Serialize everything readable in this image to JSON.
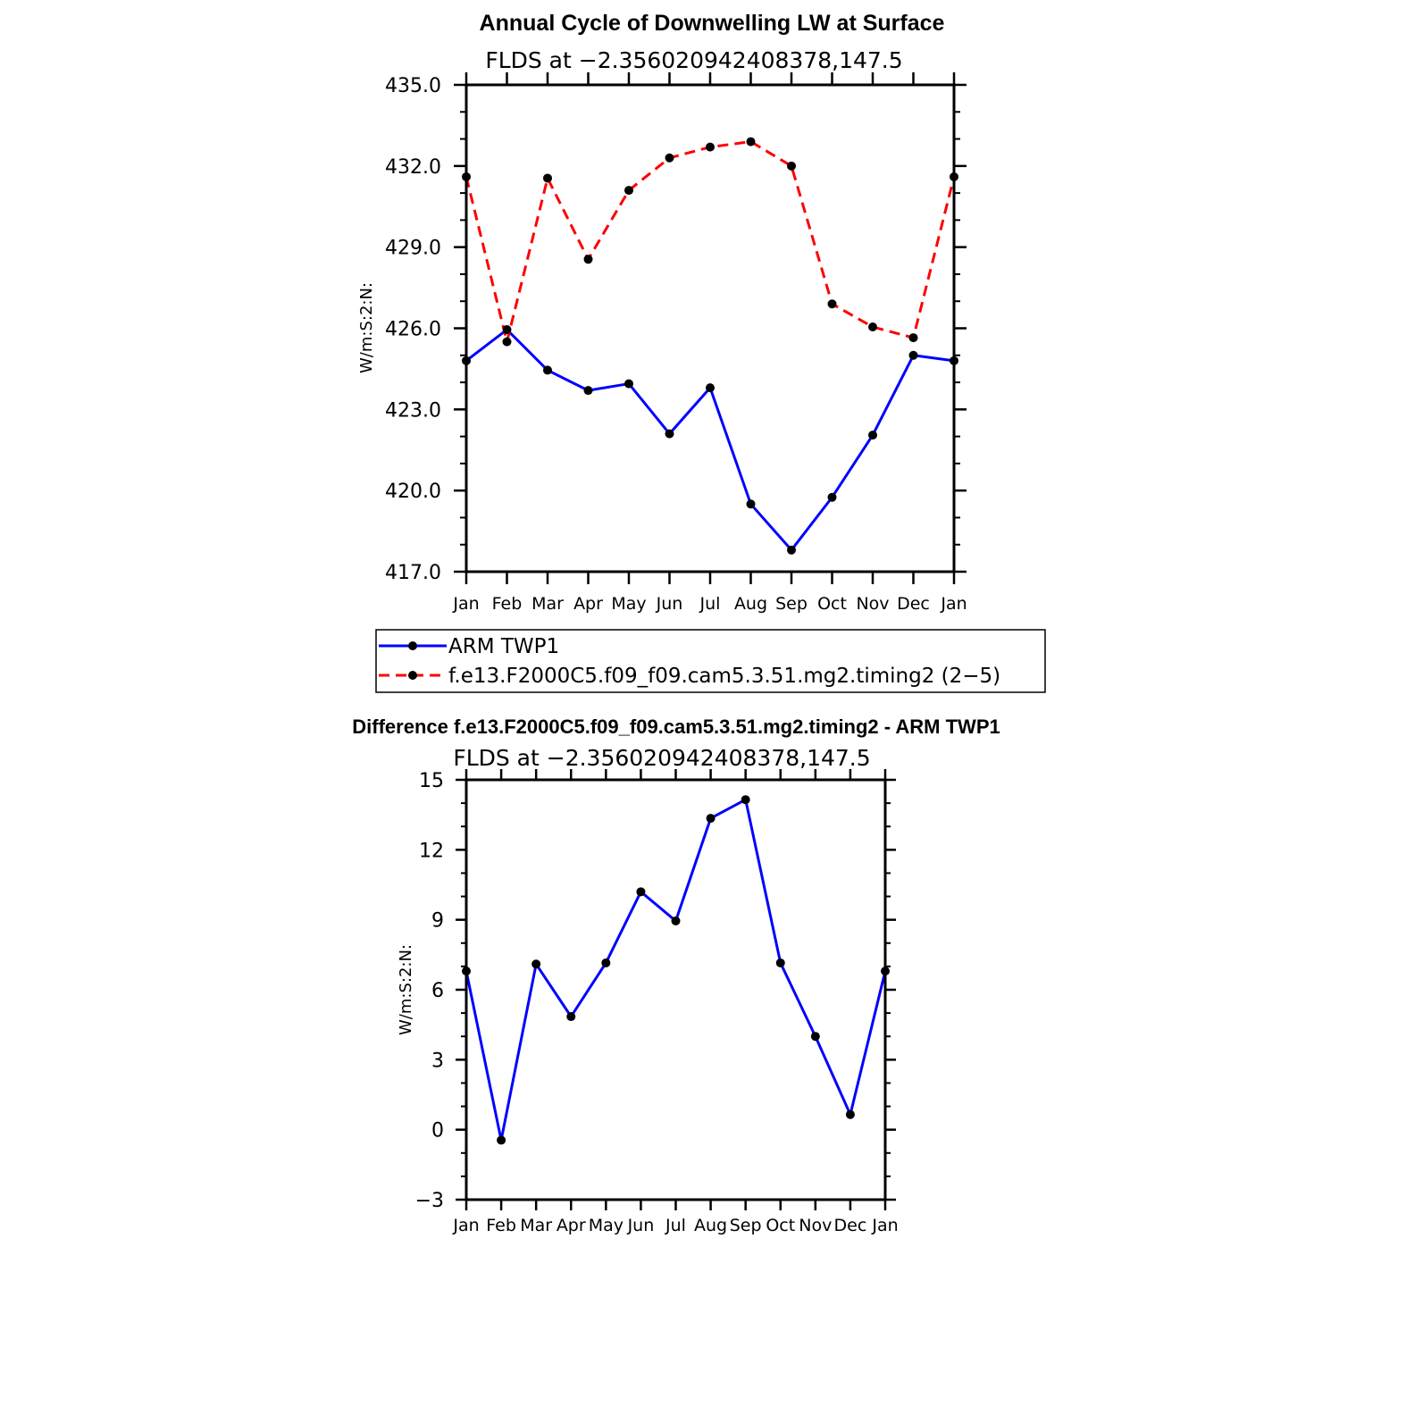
{
  "chart_data": [
    {
      "type": "line",
      "title": "Annual Cycle of Downwelling LW at Surface",
      "subtitle": "FLDS at −2.356020942408378,147.5",
      "xlabel": "",
      "ylabel": "W/m:S:2:N:",
      "categories": [
        "Jan",
        "Feb",
        "Mar",
        "Apr",
        "May",
        "Jun",
        "Jul",
        "Aug",
        "Sep",
        "Oct",
        "Nov",
        "Dec",
        "Jan"
      ],
      "ylim": [
        417.0,
        435.0
      ],
      "yticks": [
        417.0,
        420.0,
        423.0,
        426.0,
        429.0,
        432.0,
        435.0
      ],
      "ytick_labels": [
        "417.0",
        "420.0",
        "423.0",
        "426.0",
        "429.0",
        "432.0",
        "435.0"
      ],
      "series": [
        {
          "name": "ARM TWP1",
          "color": "#0000ff",
          "dash": "solid",
          "values": [
            424.8,
            425.95,
            424.45,
            423.7,
            423.95,
            422.1,
            423.8,
            419.5,
            417.8,
            419.75,
            422.05,
            425.0,
            424.8
          ]
        },
        {
          "name": "f.e13.F2000C5.f09_f09.cam5.3.51.mg2.timing2 (2−5)",
          "color": "#ff0000",
          "dash": "dashed",
          "values": [
            431.6,
            425.5,
            431.55,
            428.55,
            431.1,
            432.3,
            432.7,
            432.9,
            432.0,
            426.9,
            426.05,
            425.65,
            431.6
          ]
        }
      ],
      "legend": {
        "placement": "bottom",
        "entries": [
          "ARM TWP1",
          "f.e13.F2000C5.f09_f09.cam5.3.51.mg2.timing2 (2−5)"
        ]
      }
    },
    {
      "type": "line",
      "title": "Difference f.e13.F2000C5.f09_f09.cam5.3.51.mg2.timing2 - ARM TWP1",
      "subtitle": "FLDS at −2.356020942408378,147.5",
      "xlabel": "",
      "ylabel": "W/m:S:2:N:",
      "categories": [
        "Jan",
        "Feb",
        "Mar",
        "Apr",
        "May",
        "Jun",
        "Jul",
        "Aug",
        "Sep",
        "Oct",
        "Nov",
        "Dec",
        "Jan"
      ],
      "ylim": [
        -3,
        15
      ],
      "yticks": [
        -3,
        0,
        3,
        6,
        9,
        12,
        15
      ],
      "ytick_labels": [
        "−3",
        "0",
        "3",
        "6",
        "9",
        "12",
        "15"
      ],
      "series": [
        {
          "name": "Difference",
          "color": "#0000ff",
          "dash": "solid",
          "values": [
            6.8,
            -0.45,
            7.1,
            4.85,
            7.15,
            10.2,
            8.95,
            13.35,
            14.15,
            7.15,
            4.0,
            0.65,
            6.8
          ]
        }
      ]
    }
  ]
}
